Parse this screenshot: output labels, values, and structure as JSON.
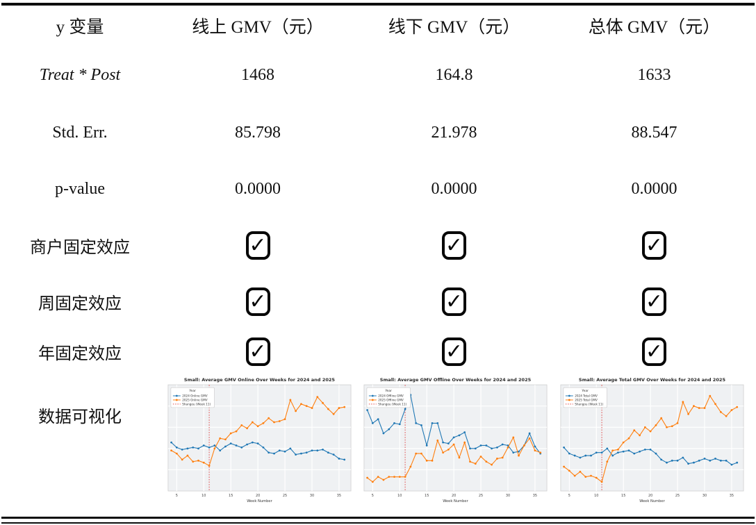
{
  "table": {
    "check_glyph": "✓",
    "header": {
      "c0": "y 变量",
      "c1": "线上 GMV（元）",
      "c2": "线下 GMV（元）",
      "c3": "总体 GMV（元）"
    },
    "rows": [
      {
        "label": "Treat * Post",
        "v1": "1468",
        "v2": "164.8",
        "v3": "1633"
      },
      {
        "label": "Std. Err.",
        "v1": "85.798",
        "v2": "21.978",
        "v3": "88.547"
      },
      {
        "label": "p-value",
        "v1": "0.0000",
        "v2": "0.0000",
        "v3": "0.0000"
      },
      {
        "label": "商户固定效应",
        "checked": [
          true,
          true,
          true
        ]
      },
      {
        "label": "周固定效应",
        "checked": [
          true,
          true,
          true
        ]
      },
      {
        "label": "年固定效应",
        "checked": [
          true,
          true,
          true
        ]
      },
      {
        "label": "数据可视化"
      }
    ]
  },
  "colors": {
    "blue": "#1f77b4",
    "orange": "#ff7f0e",
    "vline_red": "#e04a4a",
    "plot_bg": "#eff1f3",
    "grid": "#ffffff",
    "frame": "#cfcfcf",
    "rule_black": "#0d0d0d"
  },
  "chart_data": [
    {
      "type": "line",
      "title": "Small: Average GMV Online Over Weeks for 2024 and 2025",
      "xlabel": "Week Number",
      "ylabel": "",
      "x_ticks": [
        5,
        10,
        15,
        20,
        25,
        30,
        35
      ],
      "ylim": [
        0,
        105
      ],
      "grid": true,
      "y_tick_labels_visible": false,
      "legend": {
        "title": "Year",
        "position": "upper left"
      },
      "vline": {
        "x": 11,
        "label": "Shangou (Week 11)",
        "color": "#e04a4a",
        "style": "dotted"
      },
      "x": [
        4,
        5,
        6,
        7,
        8,
        9,
        10,
        11,
        12,
        13,
        14,
        15,
        16,
        17,
        18,
        19,
        20,
        21,
        22,
        23,
        24,
        25,
        26,
        27,
        28,
        29,
        30,
        31,
        32,
        33,
        34,
        35,
        36
      ],
      "series": [
        {
          "name": "2024 Online GMV",
          "color": "#1f77b4",
          "values": [
            48,
            43,
            41,
            42,
            43,
            42,
            45,
            43,
            45,
            40,
            44,
            47,
            45,
            43,
            46,
            48,
            47,
            43,
            38,
            37,
            40,
            39,
            42,
            36,
            37,
            38,
            40,
            40,
            41,
            38,
            36,
            32,
            31
          ]
        },
        {
          "name": "2025 Online GMV",
          "color": "#ff7f0e",
          "values": [
            40,
            37,
            31,
            35,
            29,
            30,
            28,
            25,
            42,
            52,
            51,
            57,
            59,
            65,
            62,
            68,
            64,
            67,
            72,
            68,
            69,
            71,
            90,
            79,
            86,
            84,
            82,
            93,
            87,
            81,
            76,
            82,
            83
          ]
        }
      ]
    },
    {
      "type": "line",
      "title": "Small: Average GMV Offline Over Weeks for 2024 and 2025",
      "xlabel": "Week Number",
      "ylabel": "",
      "x_ticks": [
        5,
        10,
        15,
        20,
        25,
        30,
        35
      ],
      "ylim": [
        0,
        105
      ],
      "grid": true,
      "y_tick_labels_visible": false,
      "legend": {
        "title": "Year",
        "position": "upper left"
      },
      "vline": {
        "x": 11,
        "label": "Shangou (Week 11)",
        "color": "#e04a4a",
        "style": "dotted"
      },
      "x": [
        4,
        5,
        6,
        7,
        8,
        9,
        10,
        11,
        12,
        13,
        14,
        15,
        16,
        17,
        18,
        19,
        20,
        21,
        22,
        23,
        24,
        25,
        26,
        27,
        28,
        29,
        30,
        31,
        32,
        33,
        34,
        35,
        36
      ],
      "series": [
        {
          "name": "2024 Offline GMV",
          "color": "#1f77b4",
          "values": [
            80,
            67,
            71,
            57,
            61,
            67,
            66,
            81,
            95,
            67,
            65,
            45,
            67,
            67,
            48,
            47,
            53,
            55,
            58,
            42,
            42,
            45,
            45,
            42,
            43,
            46,
            45,
            38,
            39,
            45,
            57,
            44,
            37
          ]
        },
        {
          "name": "2025 Offline GMV",
          "color": "#ff7f0e",
          "values": [
            13,
            9,
            14,
            11,
            14,
            14,
            14,
            14,
            24,
            37,
            37,
            30,
            30,
            50,
            38,
            41,
            46,
            33,
            48,
            29,
            27,
            34,
            29,
            26,
            32,
            33,
            43,
            53,
            35,
            45,
            52,
            40,
            38
          ]
        }
      ]
    },
    {
      "type": "line",
      "title": "Small: Average Total GMV Over Weeks for 2024 and 2025",
      "xlabel": "Week Number",
      "ylabel": "",
      "x_ticks": [
        5,
        10,
        15,
        20,
        25,
        30,
        35
      ],
      "ylim": [
        0,
        105
      ],
      "grid": true,
      "y_tick_labels_visible": false,
      "legend": {
        "title": "Year",
        "position": "upper left"
      },
      "vline": {
        "x": 11,
        "label": "Shangou (Week 11)",
        "color": "#e04a4a",
        "style": "dotted"
      },
      "x": [
        4,
        5,
        6,
        7,
        8,
        9,
        10,
        11,
        12,
        13,
        14,
        15,
        16,
        17,
        18,
        19,
        20,
        21,
        22,
        23,
        24,
        25,
        26,
        27,
        28,
        29,
        30,
        31,
        32,
        33,
        34,
        35,
        36
      ],
      "series": [
        {
          "name": "2024 Total GMV",
          "color": "#1f77b4",
          "values": [
            43,
            37,
            35,
            33,
            35,
            35,
            38,
            38,
            42,
            35,
            38,
            39,
            40,
            37,
            39,
            41,
            41,
            37,
            31,
            28,
            30,
            30,
            33,
            27,
            28,
            30,
            32,
            30,
            32,
            30,
            30,
            26,
            28
          ]
        },
        {
          "name": "2025 Total GMV",
          "color": "#ff7f0e",
          "values": [
            24,
            20,
            15,
            19,
            14,
            15,
            13,
            9,
            29,
            40,
            41,
            48,
            52,
            60,
            55,
            63,
            59,
            65,
            72,
            63,
            64,
            67,
            88,
            76,
            84,
            82,
            82,
            94,
            86,
            78,
            74,
            80,
            83
          ]
        }
      ]
    }
  ]
}
